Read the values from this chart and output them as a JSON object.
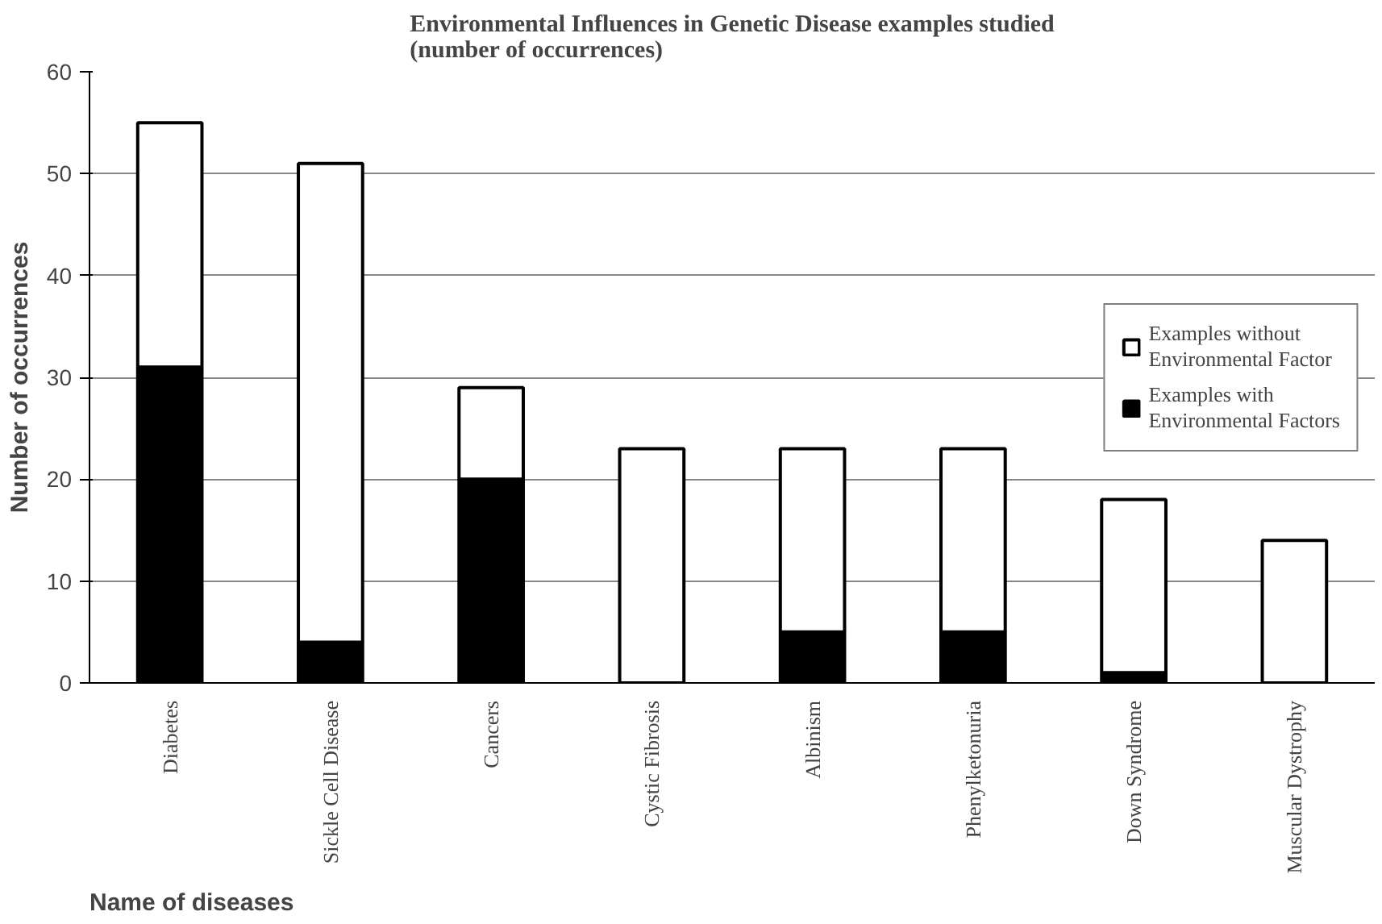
{
  "chart_data": {
    "type": "bar",
    "stacked": true,
    "title": "Environmental Influences in Genetic Disease examples studied (number of occurrences)",
    "xlabel": "Name of diseases",
    "ylabel": "Number of occurrences",
    "categories": [
      "Diabetes",
      "Sickle Cell Disease",
      "Cancers",
      "Cystic Fibrosis",
      "Albinism",
      "Phenylketonuria",
      "Down Syndrome",
      "Muscular Dystrophy"
    ],
    "series": [
      {
        "name": "Examples with Environmental Factors",
        "color": "#000000",
        "values": [
          31,
          4,
          20,
          0,
          5,
          5,
          1,
          0
        ]
      },
      {
        "name": "Examples without Environmental Factor",
        "color": "#ffffff",
        "values": [
          24,
          47,
          9,
          23,
          18,
          18,
          17,
          14
        ]
      }
    ],
    "ylim": [
      0,
      60
    ],
    "yticks": [
      0,
      10,
      20,
      30,
      40,
      50,
      60
    ],
    "grid": "y",
    "legend": "right"
  }
}
